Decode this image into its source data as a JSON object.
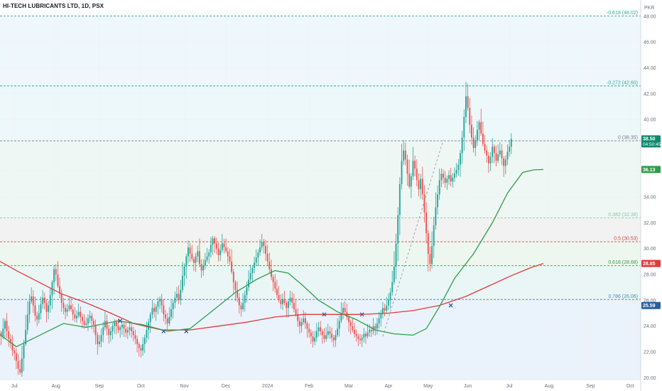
{
  "header": {
    "title": "HI-TECH LUBRICANTS LTD, 1D, PSX",
    "currency": "PKR"
  },
  "colors": {
    "up": "#26a69a",
    "down": "#ef5350",
    "ma_fast": "#2e9e4a",
    "ma_slow": "#e03a3a",
    "fib_line": "#36a89a"
  },
  "price_badges": [
    {
      "label": "38.50",
      "sub": "04:50:45",
      "value": 38.5,
      "color": "#0c8a6e"
    },
    {
      "label": "36.13",
      "sub": "",
      "value": 36.13,
      "color": "#2e9e4a"
    },
    {
      "label": "28.85",
      "sub": "",
      "value": 28.85,
      "color": "#e03a3a"
    },
    {
      "label": "25.59",
      "sub": "",
      "value": 25.59,
      "color": "#2660a4"
    }
  ],
  "chart_data": {
    "type": "candlestick",
    "title": "HI-TECH LUBRICANTS LTD, 1D, PSX",
    "ylabel": "PKR",
    "ylim": [
      20,
      49
    ],
    "y_ticks": [
      "20.00",
      "22.00",
      "24.00",
      "26.00",
      "28.00",
      "30.00",
      "32.00",
      "34.00",
      "36.00",
      "38.00",
      "40.00",
      "42.00",
      "44.00",
      "46.00",
      "48.00"
    ],
    "x_ticks": [
      {
        "label": "Jul",
        "t": 7
      },
      {
        "label": "Aug",
        "t": 29
      },
      {
        "label": "Sep",
        "t": 52
      },
      {
        "label": "Oct",
        "t": 74
      },
      {
        "label": "Nov",
        "t": 97
      },
      {
        "label": "Dec",
        "t": 119
      },
      {
        "label": "2024",
        "t": 141
      },
      {
        "label": "Feb",
        "t": 163
      },
      {
        "label": "Mar",
        "t": 184
      },
      {
        "label": "Apr",
        "t": 205
      },
      {
        "label": "May",
        "t": 226
      },
      {
        "label": "Jun",
        "t": 247
      },
      {
        "label": "Jul",
        "t": 269
      },
      {
        "label": "Aug",
        "t": 290
      },
      {
        "label": "Sep",
        "t": 312
      },
      {
        "label": "Oct",
        "t": 333
      }
    ],
    "fib_levels": [
      {
        "label": "-0.618 (48.02)",
        "value": 48.02,
        "color": "#36a89a",
        "zone": "#eef7fb"
      },
      {
        "label": "-0.272 (42.60)",
        "value": 42.6,
        "color": "#36a89a",
        "zone": "#edf8fb"
      },
      {
        "label": "0 (38.35)",
        "value": 38.35,
        "color": "#787b86",
        "zone": "#eef7f4"
      },
      {
        "label": "0.382 (32.38)",
        "value": 32.38,
        "color": "#8fc6a8",
        "zone": "#f2f2f2"
      },
      {
        "label": "0.5 (30.53)",
        "value": 30.53,
        "color": "#d44747",
        "zone": "#eef7ef"
      },
      {
        "label": "0.618 (28.68)",
        "value": 28.68,
        "color": "#2e9e4a",
        "zone": "#eaf6f6"
      },
      {
        "label": "0.786 (26.06)",
        "value": 26.06,
        "color": "#4f8ab8",
        "zone": "#eaf3fb"
      }
    ],
    "trend_line": [
      {
        "t": 202,
        "y": 23.2
      },
      {
        "t": 234,
        "y": 38.4
      }
    ],
    "crosses": [
      {
        "t": 63,
        "y": 24.4
      },
      {
        "t": 86,
        "y": 23.6
      },
      {
        "t": 98,
        "y": 23.6
      },
      {
        "t": 171,
        "y": 24.9
      },
      {
        "t": 191,
        "y": 24.9
      },
      {
        "t": 238,
        "y": 25.6
      }
    ],
    "ma_fast": [
      [
        -3,
        23.6
      ],
      [
        8,
        22.4
      ],
      [
        22,
        23.4
      ],
      [
        33,
        24.2
      ],
      [
        45,
        23.9
      ],
      [
        62,
        24.4
      ],
      [
        75,
        24.1
      ],
      [
        88,
        23.6
      ],
      [
        100,
        23.8
      ],
      [
        112,
        25.2
      ],
      [
        124,
        26.6
      ],
      [
        135,
        27.6
      ],
      [
        145,
        28.3
      ],
      [
        152,
        28.1
      ],
      [
        160,
        27.1
      ],
      [
        168,
        26.0
      ],
      [
        178,
        25.1
      ],
      [
        188,
        24.5
      ],
      [
        198,
        23.7
      ],
      [
        208,
        23.4
      ],
      [
        218,
        23.3
      ],
      [
        225,
        23.8
      ],
      [
        232,
        25.5
      ],
      [
        240,
        27.7
      ],
      [
        250,
        29.6
      ],
      [
        260,
        32.0
      ],
      [
        268,
        34.3
      ],
      [
        276,
        35.9
      ],
      [
        282,
        36.1
      ],
      [
        287,
        36.13
      ]
    ],
    "ma_slow": [
      [
        -3,
        29.2
      ],
      [
        8,
        28.3
      ],
      [
        20,
        27.4
      ],
      [
        32,
        26.5
      ],
      [
        45,
        25.8
      ],
      [
        58,
        25.0
      ],
      [
        70,
        24.2
      ],
      [
        85,
        23.7
      ],
      [
        100,
        23.7
      ],
      [
        115,
        24.0
      ],
      [
        130,
        24.3
      ],
      [
        145,
        24.7
      ],
      [
        160,
        24.9
      ],
      [
        175,
        24.9
      ],
      [
        190,
        24.9
      ],
      [
        205,
        25.0
      ],
      [
        218,
        25.2
      ],
      [
        232,
        25.6
      ],
      [
        246,
        26.3
      ],
      [
        258,
        27.1
      ],
      [
        270,
        27.9
      ],
      [
        280,
        28.5
      ],
      [
        287,
        28.85
      ]
    ],
    "close": [
      23.2,
      23.8,
      24.4,
      23.6,
      23.0,
      22.7,
      22.1,
      21.9,
      21.3,
      20.7,
      20.4,
      21.5,
      22.6,
      23.7,
      24.9,
      25.9,
      26.3,
      25.6,
      24.8,
      24.5,
      25.0,
      25.7,
      26.2,
      25.8,
      25.1,
      25.6,
      26.4,
      27.4,
      28.4,
      28.0,
      27.1,
      26.5,
      25.8,
      25.4,
      25.1,
      25.3,
      25.6,
      25.3,
      24.9,
      24.6,
      24.8,
      25.1,
      24.7,
      24.4,
      24.1,
      24.2,
      24.6,
      24.8,
      24.4,
      24.1,
      23.3,
      22.6,
      22.8,
      23.3,
      23.9,
      24.4,
      23.8,
      23.3,
      23.6,
      24.0,
      24.3,
      24.0,
      23.7,
      23.9,
      24.1,
      23.8,
      23.5,
      23.7,
      23.9,
      23.6,
      23.3,
      23.0,
      22.6,
      22.3,
      22.1,
      22.6,
      23.1,
      23.7,
      24.3,
      24.9,
      25.4,
      25.1,
      25.5,
      25.9,
      26.1,
      25.6,
      24.9,
      24.6,
      24.2,
      24.7,
      25.3,
      25.8,
      26.2,
      26.5,
      26.0,
      26.8,
      27.9,
      28.6,
      29.4,
      30.1,
      29.6,
      29.2,
      28.9,
      29.4,
      29.8,
      28.8,
      28.3,
      28.7,
      29.1,
      29.4,
      29.7,
      30.3,
      30.8,
      30.4,
      30.0,
      29.5,
      29.9,
      30.4,
      30.1,
      29.8,
      29.4,
      29.0,
      28.2,
      27.4,
      26.8,
      26.2,
      25.6,
      25.3,
      25.8,
      26.4,
      27.0,
      27.6,
      28.1,
      28.5,
      28.9,
      29.3,
      29.7,
      30.1,
      30.5,
      30.2,
      29.6,
      29.0,
      28.4,
      27.8,
      27.4,
      26.9,
      26.4,
      26.0,
      25.7,
      26.1,
      25.8,
      25.4,
      25.9,
      26.2,
      25.8,
      25.3,
      24.9,
      24.4,
      24.0,
      24.3,
      24.6,
      24.2,
      23.8,
      23.5,
      23.2,
      22.8,
      23.1,
      23.6,
      23.9,
      23.6,
      23.3,
      23.0,
      23.3,
      23.6,
      23.4,
      23.1,
      22.9,
      23.3,
      23.8,
      24.4,
      25.0,
      25.4,
      25.1,
      24.7,
      24.3,
      24.0,
      23.7,
      23.4,
      23.2,
      23.0,
      22.9,
      23.1,
      23.4,
      23.2,
      23.5,
      23.7,
      23.6,
      24.0,
      23.8,
      24.2,
      24.6,
      25.0,
      25.4,
      25.2,
      25.6,
      26.0,
      26.6,
      27.4,
      28.6,
      30.4,
      32.6,
      35.0,
      36.8,
      37.6,
      36.9,
      35.8,
      34.8,
      35.6,
      36.8,
      36.2,
      35.3,
      34.6,
      35.4,
      34.2,
      32.8,
      31.2,
      29.6,
      28.8,
      30.2,
      31.8,
      33.2,
      34.2,
      35.3,
      35.8,
      35.5,
      35.1,
      35.4,
      35.7,
      35.2,
      35.5,
      35.8,
      36.1,
      36.5,
      37.4,
      38.6,
      40.2,
      41.8,
      40.9,
      39.6,
      38.6,
      37.8,
      38.4,
      39.2,
      39.8,
      38.9,
      38.1,
      37.6,
      37.2,
      36.6,
      37.1,
      37.9,
      37.4,
      36.8,
      37.3,
      37.6,
      37.0,
      36.4,
      36.9,
      37.5,
      37.9,
      38.5
    ]
  }
}
